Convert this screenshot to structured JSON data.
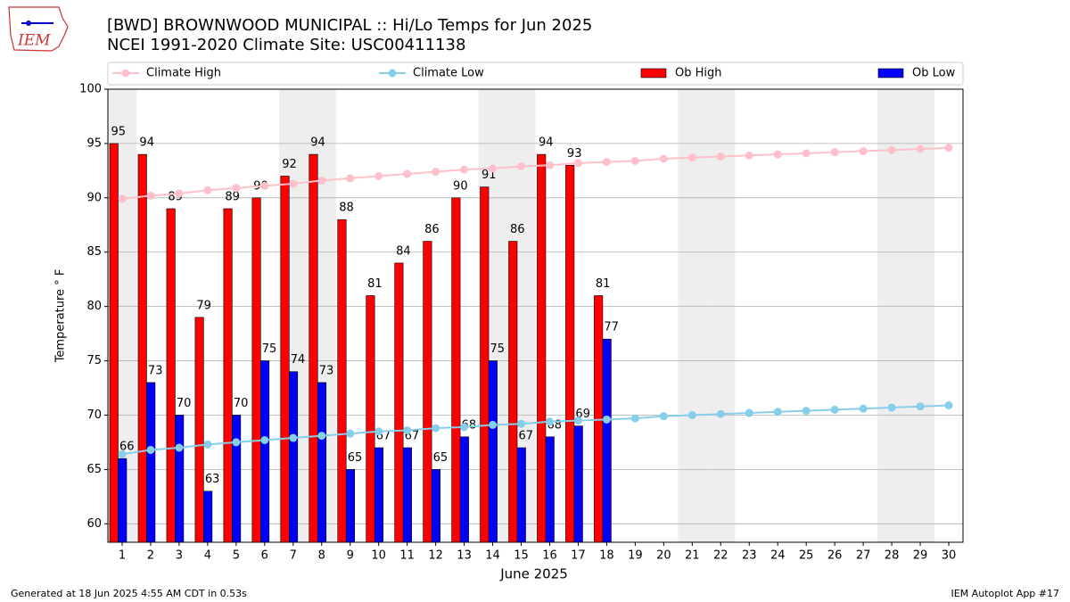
{
  "chart_data": {
    "type": "bar",
    "title": "[BWD] BROWNWOOD MUNICIPAL :: Hi/Lo Temps for Jun 2025",
    "subtitle": "NCEI 1991-2020 Climate Site: USC00411138",
    "logo_text": "IEM",
    "x_label": "June 2025",
    "y_label": "Temperature ° F",
    "footer_left": "Generated at 18 Jun 2025 4:55 AM CDT in 0.53s",
    "footer_right": "IEM Autoplot App #17",
    "categories": [
      "1",
      "2",
      "3",
      "4",
      "5",
      "6",
      "7",
      "8",
      "9",
      "10",
      "11",
      "12",
      "13",
      "14",
      "15",
      "16",
      "17",
      "18",
      "19",
      "20",
      "21",
      "22",
      "23",
      "24",
      "25",
      "26",
      "27",
      "28",
      "29",
      "30"
    ],
    "shaded_days": [
      "1",
      "7",
      "8",
      "14",
      "15",
      "21",
      "22",
      "28",
      "29"
    ],
    "ylim": [
      58.3,
      100
    ],
    "yticks": [
      60,
      65,
      70,
      75,
      80,
      85,
      90,
      95,
      100
    ],
    "grid": true,
    "legend": "top",
    "series": [
      {
        "name": "Climate High",
        "type": "line",
        "color": "#ffc0cb",
        "values": [
          89.9,
          90.2,
          90.4,
          90.7,
          90.9,
          91.1,
          91.3,
          91.6,
          91.8,
          92.0,
          92.2,
          92.4,
          92.6,
          92.7,
          92.9,
          93.0,
          93.2,
          93.3,
          93.4,
          93.6,
          93.7,
          93.8,
          93.9,
          94.0,
          94.1,
          94.2,
          94.3,
          94.4,
          94.5,
          94.6
        ]
      },
      {
        "name": "Climate Low",
        "type": "line",
        "color": "#87ceeb",
        "values": [
          66.4,
          66.8,
          67.0,
          67.3,
          67.5,
          67.7,
          67.9,
          68.1,
          68.3,
          68.5,
          68.6,
          68.8,
          68.9,
          69.1,
          69.2,
          69.4,
          69.5,
          69.6,
          69.7,
          69.9,
          70.0,
          70.1,
          70.2,
          70.3,
          70.4,
          70.5,
          70.6,
          70.7,
          70.8,
          70.9
        ]
      },
      {
        "name": "Ob High",
        "type": "bar",
        "color": "#ff0000",
        "values": [
          95,
          94,
          89,
          79,
          89,
          90,
          92,
          94,
          88,
          81,
          84,
          86,
          90,
          91,
          86,
          94,
          93,
          81,
          null,
          null,
          null,
          null,
          null,
          null,
          null,
          null,
          null,
          null,
          null,
          null
        ]
      },
      {
        "name": "Ob Low",
        "type": "bar",
        "color": "#0000ff",
        "values": [
          66,
          73,
          70,
          63,
          70,
          75,
          74,
          73,
          65,
          67,
          67,
          65,
          68,
          75,
          67,
          68,
          69,
          77,
          null,
          null,
          null,
          null,
          null,
          null,
          null,
          null,
          null,
          null,
          null,
          null
        ]
      }
    ]
  }
}
